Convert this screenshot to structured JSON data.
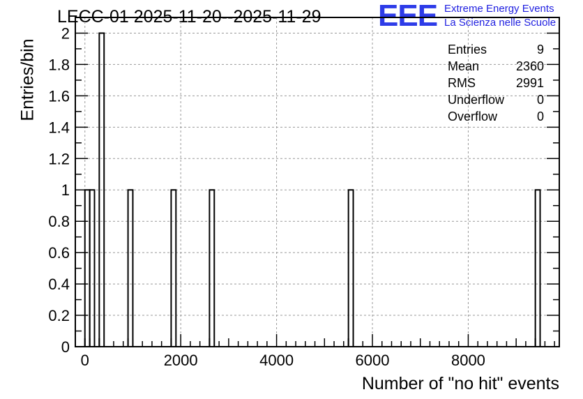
{
  "chart_data": {
    "type": "bar",
    "title": "LECC-01 2025-11-20--2025-11-29",
    "xlabel": "Number of \"no hit\" events",
    "ylabel": "Entries/bin",
    "xlim": [
      -200,
      9900
    ],
    "ylim": [
      0,
      2.1
    ],
    "bin_width": 100,
    "xticks": [
      0,
      2000,
      4000,
      6000,
      8000
    ],
    "yticks": [
      0,
      0.2,
      0.4,
      0.6,
      0.8,
      1,
      1.2,
      1.4,
      1.6,
      1.8,
      2
    ],
    "grid": true,
    "bins": [
      {
        "x": 0,
        "count": 1
      },
      {
        "x": 100,
        "count": 1
      },
      {
        "x": 300,
        "count": 2
      },
      {
        "x": 900,
        "count": 1
      },
      {
        "x": 1800,
        "count": 1
      },
      {
        "x": 2600,
        "count": 1
      },
      {
        "x": 5500,
        "count": 1
      },
      {
        "x": 9400,
        "count": 1
      }
    ],
    "rug": [
      0,
      100,
      300,
      900,
      1800,
      2600,
      5500,
      9400
    ],
    "stats": [
      {
        "label": "Entries",
        "value": "9"
      },
      {
        "label": "Mean",
        "value": "2360"
      },
      {
        "label": "RMS",
        "value": "2991"
      },
      {
        "label": "Underflow",
        "value": "0"
      },
      {
        "label": "Overflow",
        "value": "0"
      }
    ]
  },
  "logo": {
    "mark": "EEE",
    "line1": "Extreme Energy Events",
    "line2": "La Scienza nelle Scuole",
    "color": "#2d3be8"
  }
}
